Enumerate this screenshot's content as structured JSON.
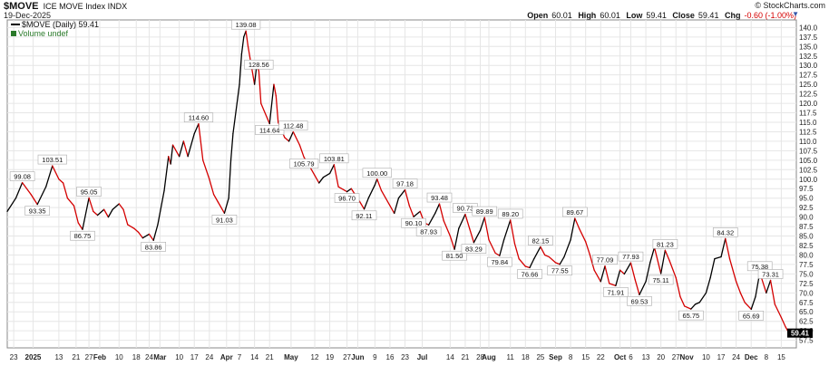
{
  "header": {
    "symbol": "$MOVE",
    "description": "ICE MOVE Index INDX",
    "date": "19-Dec-2025",
    "brand": "© StockCharts.com",
    "open_label": "Open",
    "open": "60.01",
    "high_label": "High",
    "high": "60.01",
    "low_label": "Low",
    "low": "59.41",
    "close_label": "Close",
    "close": "59.41",
    "chg_label": "Chg",
    "chg": "-0.60 (-1.00%)"
  },
  "legend": {
    "series_label": "$MOVE (Daily) 59.41",
    "volume_label": "Volume undef"
  },
  "colors": {
    "up": "#000000",
    "down": "#d40000",
    "grid": "#e6e6e6",
    "last_box": "#000000",
    "volume": "#2a7a2a"
  },
  "chart_data": {
    "type": "line",
    "ylim": [
      55.5,
      142.0
    ],
    "yticks": [
      "57.5",
      "60.0",
      "62.5",
      "65.0",
      "67.5",
      "70.0",
      "72.5",
      "75.0",
      "77.5",
      "80.0",
      "82.5",
      "85.0",
      "87.5",
      "90.0",
      "92.5",
      "95.0",
      "97.5",
      "100.0",
      "102.5",
      "105.0",
      "107.5",
      "110.0",
      "112.5",
      "115.0",
      "117.5",
      "120.0",
      "122.5",
      "125.0",
      "127.5",
      "130.0",
      "132.5",
      "135.0",
      "137.5",
      "140.0"
    ],
    "xlim": [
      "2024-12-20",
      "2025-12-22"
    ],
    "xticks": [
      {
        "date": "2024-12-23",
        "label": "23"
      },
      {
        "date": "2025-01-01",
        "label": "2025"
      },
      {
        "date": "2025-01-13",
        "label": "13"
      },
      {
        "date": "2025-01-21",
        "label": "21"
      },
      {
        "date": "2025-01-27",
        "label": "27"
      },
      {
        "date": "2025-02-01",
        "label": "Feb"
      },
      {
        "date": "2025-02-10",
        "label": "10"
      },
      {
        "date": "2025-02-18",
        "label": "18"
      },
      {
        "date": "2025-02-24",
        "label": "24"
      },
      {
        "date": "2025-03-01",
        "label": "Mar"
      },
      {
        "date": "2025-03-10",
        "label": "10"
      },
      {
        "date": "2025-03-17",
        "label": "17"
      },
      {
        "date": "2025-03-24",
        "label": "24"
      },
      {
        "date": "2025-04-01",
        "label": "Apr"
      },
      {
        "date": "2025-04-07",
        "label": "7"
      },
      {
        "date": "2025-04-14",
        "label": "14"
      },
      {
        "date": "2025-04-21",
        "label": "21"
      },
      {
        "date": "2025-05-01",
        "label": "May"
      },
      {
        "date": "2025-05-12",
        "label": "12"
      },
      {
        "date": "2025-05-19",
        "label": "19"
      },
      {
        "date": "2025-05-27",
        "label": "27"
      },
      {
        "date": "2025-06-01",
        "label": "Jun"
      },
      {
        "date": "2025-06-09",
        "label": "9"
      },
      {
        "date": "2025-06-16",
        "label": "16"
      },
      {
        "date": "2025-06-23",
        "label": "23"
      },
      {
        "date": "2025-07-01",
        "label": "Jul"
      },
      {
        "date": "2025-07-14",
        "label": "14"
      },
      {
        "date": "2025-07-21",
        "label": "21"
      },
      {
        "date": "2025-07-28",
        "label": "28"
      },
      {
        "date": "2025-08-01",
        "label": "Aug"
      },
      {
        "date": "2025-08-11",
        "label": "11"
      },
      {
        "date": "2025-08-18",
        "label": "18"
      },
      {
        "date": "2025-08-25",
        "label": "25"
      },
      {
        "date": "2025-09-01",
        "label": "Sep"
      },
      {
        "date": "2025-09-08",
        "label": "8"
      },
      {
        "date": "2025-09-15",
        "label": "15"
      },
      {
        "date": "2025-09-22",
        "label": "22"
      },
      {
        "date": "2025-10-01",
        "label": "Oct"
      },
      {
        "date": "2025-10-06",
        "label": "6"
      },
      {
        "date": "2025-10-13",
        "label": "13"
      },
      {
        "date": "2025-10-20",
        "label": "20"
      },
      {
        "date": "2025-10-27",
        "label": "27"
      },
      {
        "date": "2025-11-01",
        "label": "Nov"
      },
      {
        "date": "2025-11-10",
        "label": "10"
      },
      {
        "date": "2025-11-17",
        "label": "17"
      },
      {
        "date": "2025-11-24",
        "label": "24"
      },
      {
        "date": "2025-12-01",
        "label": "Dec"
      },
      {
        "date": "2025-12-08",
        "label": "8"
      },
      {
        "date": "2025-12-15",
        "label": "15"
      }
    ],
    "series": [
      {
        "points": [
          [
            "2024-12-20",
            91.5
          ],
          [
            "2024-12-24",
            95.0
          ],
          [
            "2024-12-27",
            99.08
          ],
          [
            "2024-12-31",
            96.0
          ],
          [
            "2025-01-03",
            93.35
          ],
          [
            "2025-01-07",
            98.0
          ],
          [
            "2025-01-10",
            103.51
          ],
          [
            "2025-01-13",
            100.0
          ],
          [
            "2025-01-15",
            99.0
          ],
          [
            "2025-01-17",
            95.0
          ],
          [
            "2025-01-20",
            93.0
          ],
          [
            "2025-01-22",
            88.5
          ],
          [
            "2025-01-24",
            86.75
          ],
          [
            "2025-01-27",
            95.05
          ],
          [
            "2025-01-29",
            91.5
          ],
          [
            "2025-01-31",
            90.5
          ],
          [
            "2025-02-03",
            92.0
          ],
          [
            "2025-02-05",
            90.0
          ],
          [
            "2025-02-07",
            92.0
          ],
          [
            "2025-02-10",
            93.5
          ],
          [
            "2025-02-12",
            92.0
          ],
          [
            "2025-02-14",
            88.0
          ],
          [
            "2025-02-17",
            87.0
          ],
          [
            "2025-02-19",
            86.0
          ],
          [
            "2025-02-21",
            84.5
          ],
          [
            "2025-02-24",
            85.5
          ],
          [
            "2025-02-26",
            83.86
          ],
          [
            "2025-02-28",
            88.0
          ],
          [
            "2025-03-03",
            97.0
          ],
          [
            "2025-03-05",
            106.0
          ],
          [
            "2025-03-06",
            104.0
          ],
          [
            "2025-03-07",
            109.0
          ],
          [
            "2025-03-10",
            106.0
          ],
          [
            "2025-03-12",
            110.0
          ],
          [
            "2025-03-14",
            106.0
          ],
          [
            "2025-03-17",
            112.0
          ],
          [
            "2025-03-19",
            114.6
          ],
          [
            "2025-03-21",
            105.0
          ],
          [
            "2025-03-24",
            100.0
          ],
          [
            "2025-03-26",
            96.0
          ],
          [
            "2025-03-28",
            94.0
          ],
          [
            "2025-03-31",
            91.03
          ],
          [
            "2025-04-02",
            95.0
          ],
          [
            "2025-04-03",
            105.0
          ],
          [
            "2025-04-04",
            112.0
          ],
          [
            "2025-04-07",
            125.0
          ],
          [
            "2025-04-08",
            133.0
          ],
          [
            "2025-04-09",
            137.5
          ],
          [
            "2025-04-10",
            139.08
          ],
          [
            "2025-04-11",
            135.0
          ],
          [
            "2025-04-14",
            125.0
          ],
          [
            "2025-04-15",
            130.0
          ],
          [
            "2025-04-16",
            128.56
          ],
          [
            "2025-04-17",
            120.0
          ],
          [
            "2025-04-21",
            114.64
          ],
          [
            "2025-04-23",
            125.0
          ],
          [
            "2025-04-24",
            122.0
          ],
          [
            "2025-04-25",
            115.0
          ],
          [
            "2025-04-28",
            111.0
          ],
          [
            "2025-04-30",
            110.0
          ],
          [
            "2025-05-02",
            112.48
          ],
          [
            "2025-05-05",
            109.0
          ],
          [
            "2025-05-07",
            105.79
          ],
          [
            "2025-05-09",
            104.0
          ],
          [
            "2025-05-12",
            101.0
          ],
          [
            "2025-05-14",
            99.0
          ],
          [
            "2025-05-16",
            100.5
          ],
          [
            "2025-05-19",
            101.5
          ],
          [
            "2025-05-21",
            103.81
          ],
          [
            "2025-05-23",
            98.0
          ],
          [
            "2025-05-27",
            96.7
          ],
          [
            "2025-05-29",
            97.5
          ],
          [
            "2025-06-02",
            94.0
          ],
          [
            "2025-06-04",
            92.11
          ],
          [
            "2025-06-06",
            95.0
          ],
          [
            "2025-06-09",
            98.5
          ],
          [
            "2025-06-10",
            100.0
          ],
          [
            "2025-06-12",
            97.0
          ],
          [
            "2025-06-16",
            93.0
          ],
          [
            "2025-06-18",
            91.0
          ],
          [
            "2025-06-20",
            95.0
          ],
          [
            "2025-06-23",
            97.18
          ],
          [
            "2025-06-25",
            93.0
          ],
          [
            "2025-06-27",
            90.1
          ],
          [
            "2025-06-30",
            91.5
          ],
          [
            "2025-07-02",
            88.5
          ],
          [
            "2025-07-04",
            87.93
          ],
          [
            "2025-07-07",
            91.0
          ],
          [
            "2025-07-09",
            93.48
          ],
          [
            "2025-07-11",
            89.0
          ],
          [
            "2025-07-14",
            85.0
          ],
          [
            "2025-07-16",
            81.5
          ],
          [
            "2025-07-18",
            87.0
          ],
          [
            "2025-07-21",
            90.73
          ],
          [
            "2025-07-23",
            87.0
          ],
          [
            "2025-07-25",
            83.29
          ],
          [
            "2025-07-28",
            86.5
          ],
          [
            "2025-07-30",
            89.89
          ],
          [
            "2025-08-01",
            84.0
          ],
          [
            "2025-08-04",
            80.5
          ],
          [
            "2025-08-06",
            79.84
          ],
          [
            "2025-08-08",
            84.0
          ],
          [
            "2025-08-11",
            89.2
          ],
          [
            "2025-08-13",
            83.0
          ],
          [
            "2025-08-15",
            79.0
          ],
          [
            "2025-08-18",
            77.0
          ],
          [
            "2025-08-20",
            76.66
          ],
          [
            "2025-08-22",
            79.0
          ],
          [
            "2025-08-25",
            82.15
          ],
          [
            "2025-08-27",
            80.0
          ],
          [
            "2025-08-29",
            79.5
          ],
          [
            "2025-09-01",
            78.0
          ],
          [
            "2025-09-03",
            77.55
          ],
          [
            "2025-09-05",
            79.5
          ],
          [
            "2025-09-08",
            84.0
          ],
          [
            "2025-09-10",
            89.67
          ],
          [
            "2025-09-12",
            87.0
          ],
          [
            "2025-09-15",
            83.5
          ],
          [
            "2025-09-17",
            80.0
          ],
          [
            "2025-09-19",
            76.0
          ],
          [
            "2025-09-22",
            73.0
          ],
          [
            "2025-09-24",
            77.09
          ],
          [
            "2025-09-26",
            72.5
          ],
          [
            "2025-09-29",
            71.91
          ],
          [
            "2025-10-01",
            76.0
          ],
          [
            "2025-10-03",
            75.0
          ],
          [
            "2025-10-06",
            77.93
          ],
          [
            "2025-10-08",
            73.5
          ],
          [
            "2025-10-10",
            69.53
          ],
          [
            "2025-10-13",
            73.0
          ],
          [
            "2025-10-15",
            78.0
          ],
          [
            "2025-10-17",
            82.0
          ],
          [
            "2025-10-20",
            75.11
          ],
          [
            "2025-10-22",
            81.23
          ],
          [
            "2025-10-24",
            78.5
          ],
          [
            "2025-10-27",
            74.0
          ],
          [
            "2025-10-29",
            69.0
          ],
          [
            "2025-10-31",
            66.5
          ],
          [
            "2025-11-03",
            65.75
          ],
          [
            "2025-11-05",
            67.0
          ],
          [
            "2025-11-07",
            67.5
          ],
          [
            "2025-11-10",
            70.0
          ],
          [
            "2025-11-12",
            74.0
          ],
          [
            "2025-11-14",
            79.0
          ],
          [
            "2025-11-17",
            79.5
          ],
          [
            "2025-11-19",
            84.32
          ],
          [
            "2025-11-21",
            79.0
          ],
          [
            "2025-11-24",
            73.0
          ],
          [
            "2025-11-26",
            70.0
          ],
          [
            "2025-11-28",
            67.5
          ],
          [
            "2025-12-01",
            65.69
          ],
          [
            "2025-12-03",
            69.0
          ],
          [
            "2025-12-05",
            75.38
          ],
          [
            "2025-12-08",
            70.0
          ],
          [
            "2025-12-10",
            73.31
          ],
          [
            "2025-12-12",
            67.0
          ],
          [
            "2025-12-15",
            63.5
          ],
          [
            "2025-12-17",
            61.0
          ],
          [
            "2025-12-18",
            60.01
          ],
          [
            "2025-12-19",
            59.41
          ]
        ]
      }
    ],
    "annotations": [
      {
        "date": "2024-12-27",
        "value": "99.08",
        "pos": "above"
      },
      {
        "date": "2025-01-03",
        "value": "93.35",
        "pos": "below"
      },
      {
        "date": "2025-01-10",
        "value": "103.51",
        "pos": "above"
      },
      {
        "date": "2025-01-24",
        "value": "86.75",
        "pos": "below"
      },
      {
        "date": "2025-01-27",
        "value": "95.05",
        "pos": "above"
      },
      {
        "date": "2025-02-26",
        "value": "83.86",
        "pos": "below"
      },
      {
        "date": "2025-03-19",
        "value": "114.60",
        "pos": "above"
      },
      {
        "date": "2025-03-31",
        "value": "91.03",
        "pos": "below"
      },
      {
        "date": "2025-04-10",
        "value": "139.08",
        "pos": "above"
      },
      {
        "date": "2025-04-16",
        "value": "128.56",
        "pos": "above"
      },
      {
        "date": "2025-04-21",
        "value": "114.64",
        "pos": "below"
      },
      {
        "date": "2025-05-02",
        "value": "112.48",
        "pos": "above"
      },
      {
        "date": "2025-05-07",
        "value": "105.79",
        "pos": "below"
      },
      {
        "date": "2025-05-21",
        "value": "103.81",
        "pos": "above"
      },
      {
        "date": "2025-05-27",
        "value": "96.70",
        "pos": "below"
      },
      {
        "date": "2025-06-04",
        "value": "92.11",
        "pos": "below"
      },
      {
        "date": "2025-06-10",
        "value": "100.00",
        "pos": "above"
      },
      {
        "date": "2025-06-23",
        "value": "97.18",
        "pos": "above"
      },
      {
        "date": "2025-06-27",
        "value": "90.10",
        "pos": "below"
      },
      {
        "date": "2025-07-04",
        "value": "87.93",
        "pos": "below"
      },
      {
        "date": "2025-07-09",
        "value": "93.48",
        "pos": "above"
      },
      {
        "date": "2025-07-16",
        "value": "81.50",
        "pos": "below"
      },
      {
        "date": "2025-07-21",
        "value": "90.73",
        "pos": "above"
      },
      {
        "date": "2025-07-25",
        "value": "83.29",
        "pos": "below"
      },
      {
        "date": "2025-07-30",
        "value": "89.89",
        "pos": "above"
      },
      {
        "date": "2025-08-06",
        "value": "79.84",
        "pos": "below"
      },
      {
        "date": "2025-08-11",
        "value": "89.20",
        "pos": "above"
      },
      {
        "date": "2025-08-20",
        "value": "76.66",
        "pos": "below"
      },
      {
        "date": "2025-08-25",
        "value": "82.15",
        "pos": "above"
      },
      {
        "date": "2025-09-03",
        "value": "77.55",
        "pos": "below"
      },
      {
        "date": "2025-09-10",
        "value": "89.67",
        "pos": "above"
      },
      {
        "date": "2025-09-24",
        "value": "77.09",
        "pos": "above"
      },
      {
        "date": "2025-09-29",
        "value": "71.91",
        "pos": "below"
      },
      {
        "date": "2025-10-06",
        "value": "77.93",
        "pos": "above"
      },
      {
        "date": "2025-10-10",
        "value": "69.53",
        "pos": "below"
      },
      {
        "date": "2025-10-20",
        "value": "75.11",
        "pos": "below"
      },
      {
        "date": "2025-10-22",
        "value": "81.23",
        "pos": "above"
      },
      {
        "date": "2025-11-03",
        "value": "65.75",
        "pos": "below"
      },
      {
        "date": "2025-11-19",
        "value": "84.32",
        "pos": "above"
      },
      {
        "date": "2025-12-01",
        "value": "65.69",
        "pos": "below"
      },
      {
        "date": "2025-12-05",
        "value": "75.38",
        "pos": "above"
      },
      {
        "date": "2025-12-10",
        "value": "73.31",
        "pos": "above"
      }
    ],
    "last_value": "59.41"
  }
}
